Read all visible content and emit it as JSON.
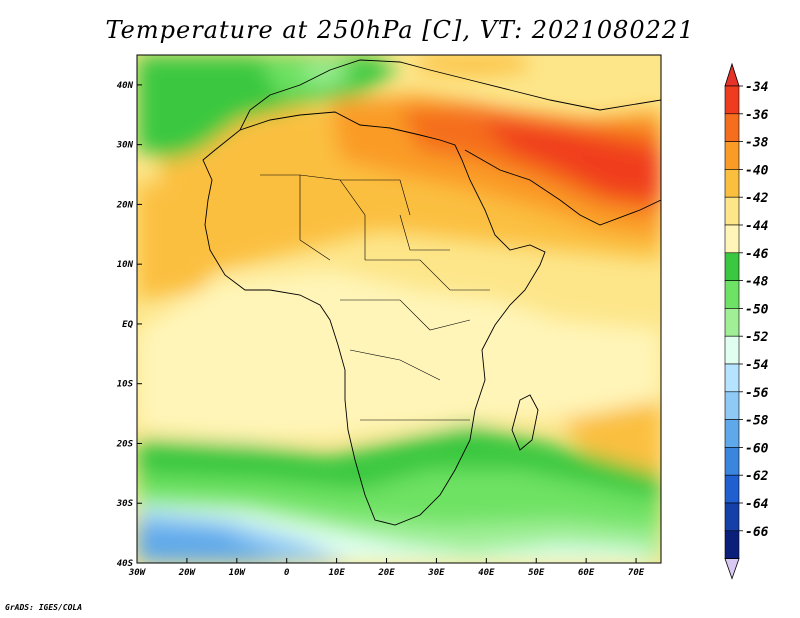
{
  "title": "Temperature at 250hPa [C], VT: 2021080221",
  "credit": "GrADS: IGES/COLA",
  "map": {
    "lon_labels": [
      "30W",
      "20W",
      "10W",
      "0",
      "10E",
      "20E",
      "30E",
      "40E",
      "50E",
      "60E",
      "70E"
    ],
    "lat_labels": [
      "40N",
      "30N",
      "20N",
      "10N",
      "EQ",
      "10S",
      "20S",
      "30S",
      "40S"
    ],
    "lon_range": [
      -30,
      75
    ],
    "lat_range": [
      -40,
      45
    ]
  },
  "colorbar": {
    "labels": [
      "-34",
      "-36",
      "-38",
      "-40",
      "-42",
      "-44",
      "-46",
      "-48",
      "-50",
      "-52",
      "-54",
      "-56",
      "-58",
      "-60",
      "-62",
      "-64",
      "-66"
    ],
    "colors": [
      "#f03c1e",
      "#f56e1e",
      "#fa9b28",
      "#fbbf3f",
      "#fde68a",
      "#fff5b8",
      "#3bc840",
      "#6ee264",
      "#a0ef96",
      "#e0fff0",
      "#b6e3ff",
      "#8fc9f5",
      "#5fa9ea",
      "#3a86de",
      "#1f5fcf",
      "#1440a8",
      "#0a1f7a"
    ],
    "top_arrow_color": "#e63228",
    "bottom_arrow_color": "#d9c8f2"
  }
}
